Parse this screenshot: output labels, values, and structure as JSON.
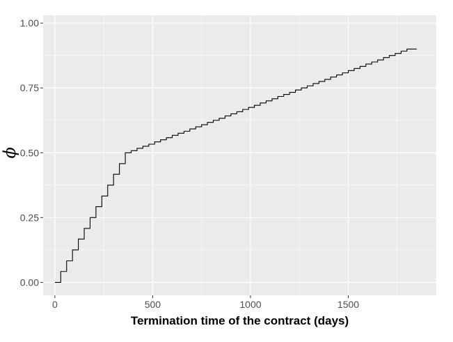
{
  "chart_data": {
    "type": "line",
    "step": true,
    "title": "",
    "xlabel": "Termination time of the contract (days)",
    "ylabel": "ϕ",
    "xlim": [
      -60,
      1950
    ],
    "ylim": [
      -0.05,
      1.03
    ],
    "xticks": [
      0,
      500,
      1000,
      1500
    ],
    "yticks": [
      0.0,
      0.25,
      0.5,
      0.75,
      1.0
    ],
    "xtick_labels": [
      "0",
      "500",
      "1000",
      "1500"
    ],
    "ytick_labels": [
      "0.00",
      "0.25",
      "0.50",
      "0.75",
      "1.00"
    ],
    "grid": true,
    "legend": "none",
    "series": [
      {
        "x": [
          0,
          30,
          60,
          90,
          120,
          150,
          180,
          210,
          240,
          270,
          300,
          330,
          360,
          390,
          420,
          450,
          480,
          510,
          540,
          570,
          600,
          630,
          660,
          690,
          720,
          750,
          780,
          810,
          840,
          870,
          900,
          930,
          960,
          990,
          1020,
          1050,
          1080,
          1110,
          1140,
          1170,
          1200,
          1230,
          1260,
          1290,
          1320,
          1350,
          1380,
          1410,
          1440,
          1470,
          1500,
          1530,
          1560,
          1590,
          1620,
          1650,
          1680,
          1710,
          1740,
          1770,
          1800,
          1850
        ],
        "y": [
          0.0,
          0.042,
          0.083,
          0.125,
          0.167,
          0.208,
          0.25,
          0.292,
          0.333,
          0.375,
          0.417,
          0.458,
          0.5,
          0.508,
          0.517,
          0.525,
          0.533,
          0.542,
          0.55,
          0.558,
          0.567,
          0.575,
          0.583,
          0.592,
          0.6,
          0.608,
          0.617,
          0.625,
          0.633,
          0.642,
          0.65,
          0.658,
          0.667,
          0.675,
          0.683,
          0.692,
          0.7,
          0.708,
          0.717,
          0.725,
          0.733,
          0.742,
          0.75,
          0.758,
          0.767,
          0.775,
          0.783,
          0.792,
          0.8,
          0.808,
          0.817,
          0.825,
          0.833,
          0.842,
          0.85,
          0.858,
          0.867,
          0.875,
          0.883,
          0.892,
          0.9,
          0.9
        ]
      }
    ]
  },
  "colors": {
    "panel_background": "#ebebeb",
    "grid_line": "#ffffff",
    "series_line": "#000000",
    "tick_text": "#4d4d4d"
  }
}
